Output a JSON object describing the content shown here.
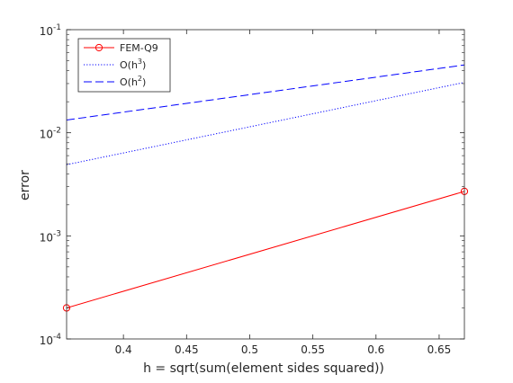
{
  "chart_data": {
    "type": "line",
    "xlabel": "h = sqrt(sum(element sides squared))",
    "ylabel": "error",
    "xlim": [
      0.355,
      0.67
    ],
    "ylim": [
      0.0001,
      0.1
    ],
    "yscale": "log",
    "xticks": [
      0.4,
      0.45,
      0.5,
      0.55,
      0.6,
      0.65
    ],
    "xtick_labels": [
      "0.4",
      "0.45",
      "0.5",
      "0.55",
      "0.6",
      "0.65"
    ],
    "yticks": [
      0.0001,
      0.001,
      0.01,
      0.1
    ],
    "ytick_labels": [
      {
        "base": "10",
        "exp": "-4"
      },
      {
        "base": "10",
        "exp": "-3"
      },
      {
        "base": "10",
        "exp": "-2"
      },
      {
        "base": "10",
        "exp": "-1"
      }
    ],
    "grid": false,
    "legend_position": "top-left",
    "series": [
      {
        "name": "FEM-Q9",
        "legend_label": {
          "text": "FEM-Q9",
          "sup": ""
        },
        "color": "#ff0000",
        "line_style": "solid",
        "marker": "circle",
        "x": [
          0.355,
          0.67
        ],
        "y": [
          0.0002,
          0.0027
        ]
      },
      {
        "name": "O(h^3)",
        "legend_label": {
          "text": "O(h",
          "sup": "3",
          "suffix": ")"
        },
        "color": "#0000ff",
        "line_style": "dotted",
        "marker": "none",
        "x": [
          0.355,
          0.67
        ],
        "y": [
          0.0049,
          0.0308
        ]
      },
      {
        "name": "O(h^2)",
        "legend_label": {
          "text": "O(h",
          "sup": "2",
          "suffix": ")"
        },
        "color": "#0000ff",
        "line_style": "dashed",
        "marker": "none",
        "x": [
          0.355,
          0.67
        ],
        "y": [
          0.0133,
          0.0455
        ]
      }
    ]
  }
}
